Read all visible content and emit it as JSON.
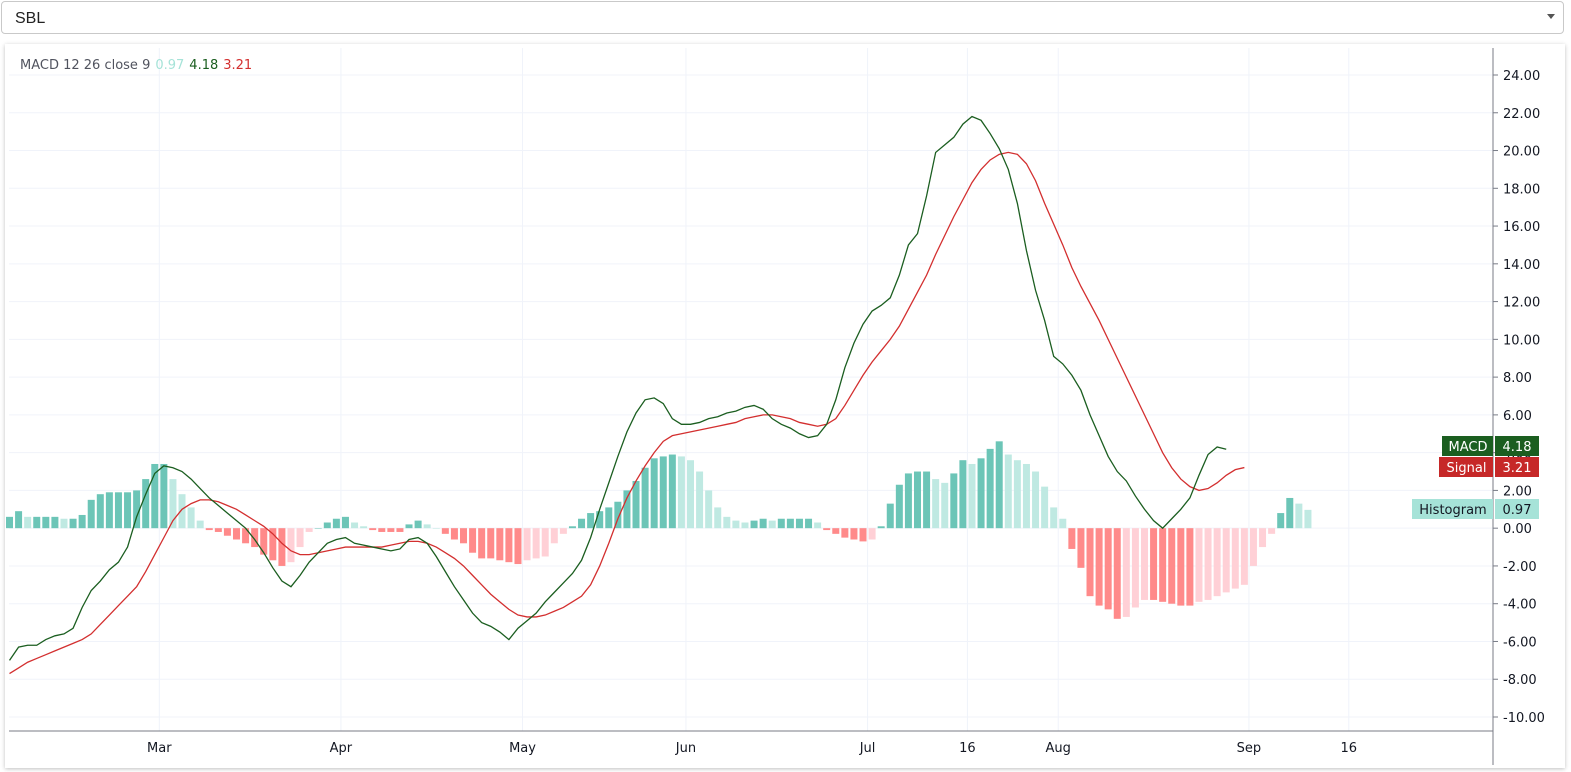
{
  "symbol_selector": {
    "value": "SBL"
  },
  "legend": {
    "indicator": "MACD 12 26 close 9",
    "histogram_value": "0.97",
    "macd_value": "4.18",
    "signal_value": "3.21"
  },
  "labels": {
    "macd": {
      "name": "MACD",
      "value": "4.18"
    },
    "signal": {
      "name": "Signal",
      "value": "3.21"
    },
    "histogram": {
      "name": "Histogram",
      "value": "0.97"
    }
  },
  "colors": {
    "macd_line": "#1b5e20",
    "signal_line": "#d32f2f",
    "hist_pos_strong": "#6cc5b7",
    "hist_pos_weak": "#bfe9e2",
    "hist_neg_strong": "#ff8a8a",
    "hist_neg_weak": "#ffd0d6"
  },
  "chart_data": {
    "type": "bar",
    "title": "",
    "y_range": [
      -10.5,
      25
    ],
    "y_ticks": [
      "24.00",
      "22.00",
      "20.00",
      "18.00",
      "16.00",
      "14.00",
      "12.00",
      "10.00",
      "8.00",
      "6.00",
      "4.00",
      "2.00",
      "0.00",
      "-2.00",
      "-4.00",
      "-6.00",
      "-8.00",
      "-10.00"
    ],
    "y_tick_values": [
      24,
      22,
      20,
      18,
      16,
      14,
      12,
      10,
      8,
      6,
      4,
      2,
      0,
      -2,
      -4,
      -6,
      -8,
      -10
    ],
    "x_ticks": [
      {
        "label": "Mar",
        "bar": 16.5
      },
      {
        "label": "Apr",
        "bar": 36.5
      },
      {
        "label": "May",
        "bar": 56.5
      },
      {
        "label": "Jun",
        "bar": 74.5
      },
      {
        "label": "Jul",
        "bar": 94.5
      },
      {
        "label": "16",
        "bar": 105.5
      },
      {
        "label": "Aug",
        "bar": 115.5
      },
      {
        "label": "Sep",
        "bar": 136.5
      },
      {
        "label": "16",
        "bar": 147.5
      }
    ],
    "series": [
      {
        "name": "Histogram",
        "values": [
          0.6,
          0.9,
          0.6,
          0.6,
          0.6,
          0.6,
          0.5,
          0.5,
          0.7,
          1.5,
          1.8,
          1.9,
          1.9,
          1.9,
          2.0,
          2.6,
          3.4,
          3.4,
          2.6,
          1.8,
          1.1,
          0.4,
          -0.1,
          -0.2,
          -0.4,
          -0.6,
          -0.8,
          -1.0,
          -1.4,
          -1.7,
          -2.0,
          -1.8,
          -1.0,
          -0.2,
          0.0,
          0.3,
          0.5,
          0.6,
          0.3,
          0.1,
          -0.1,
          -0.2,
          -0.2,
          -0.2,
          0.2,
          0.4,
          0.2,
          0.0,
          -0.3,
          -0.6,
          -0.8,
          -1.3,
          -1.6,
          -1.6,
          -1.7,
          -1.8,
          -1.9,
          -1.7,
          -1.6,
          -1.5,
          -0.8,
          -0.3,
          0.1,
          0.5,
          0.8,
          0.9,
          1.1,
          1.4,
          2.0,
          2.5,
          3.2,
          3.7,
          3.8,
          3.9,
          3.8,
          3.6,
          3.0,
          2.0,
          1.1,
          0.6,
          0.4,
          0.3,
          0.4,
          0.5,
          0.4,
          0.5,
          0.5,
          0.5,
          0.5,
          0.3,
          -0.1,
          -0.3,
          -0.5,
          -0.6,
          -0.7,
          -0.6,
          0.1,
          1.3,
          2.3,
          2.9,
          3.0,
          3.0,
          2.6,
          2.4,
          2.9,
          3.6,
          3.4,
          3.7,
          4.2,
          4.6,
          3.9,
          3.6,
          3.4,
          3.0,
          2.2,
          1.1,
          0.5,
          -1.1,
          -2.1,
          -3.6,
          -4.1,
          -4.3,
          -4.8,
          -4.7,
          -4.2,
          -3.8,
          -3.8,
          -3.9,
          -4.0,
          -4.1,
          -4.1,
          -3.9,
          -3.8,
          -3.6,
          -3.4,
          -3.2,
          -3.0,
          -2.0,
          -1.0,
          -0.3,
          0.8,
          1.6,
          1.3,
          0.97
        ]
      },
      {
        "name": "MACD",
        "values": [
          -7.0,
          -6.3,
          -6.2,
          -6.2,
          -5.9,
          -5.7,
          -5.6,
          -5.3,
          -4.2,
          -3.3,
          -2.8,
          -2.2,
          -1.8,
          -1.0,
          0.6,
          1.8,
          2.9,
          3.3,
          3.2,
          3.0,
          2.6,
          2.1,
          1.6,
          1.2,
          0.8,
          0.4,
          0.0,
          -0.6,
          -1.3,
          -2.1,
          -2.8,
          -3.1,
          -2.5,
          -1.8,
          -1.3,
          -0.8,
          -0.6,
          -0.5,
          -0.8,
          -0.9,
          -1.0,
          -1.1,
          -1.2,
          -1.1,
          -0.6,
          -0.5,
          -0.8,
          -1.5,
          -2.3,
          -3.1,
          -3.8,
          -4.5,
          -5.0,
          -5.2,
          -5.5,
          -5.9,
          -5.3,
          -4.9,
          -4.5,
          -3.9,
          -3.4,
          -2.9,
          -2.4,
          -1.7,
          -0.5,
          1.0,
          2.4,
          3.8,
          5.1,
          6.1,
          6.8,
          6.9,
          6.6,
          5.8,
          5.5,
          5.5,
          5.6,
          5.8,
          5.9,
          6.1,
          6.2,
          6.4,
          6.5,
          6.3,
          5.8,
          5.5,
          5.3,
          5.0,
          4.8,
          4.9,
          5.5,
          6.8,
          8.5,
          9.8,
          10.8,
          11.5,
          11.8,
          12.2,
          13.4,
          15.0,
          15.6,
          17.6,
          19.9,
          20.3,
          20.7,
          21.4,
          21.8,
          21.6,
          20.9,
          20.1,
          19.0,
          17.2,
          14.7,
          12.6,
          11.0,
          9.1,
          8.7,
          8.1,
          7.3,
          6.0,
          4.9,
          3.8,
          3.0,
          2.5,
          1.7,
          1.0,
          0.4,
          0.0,
          0.5,
          1.0,
          1.6,
          2.8,
          3.9,
          4.3,
          4.18
        ]
      },
      {
        "name": "Signal",
        "values": [
          -7.7,
          -7.4,
          -7.1,
          -6.9,
          -6.7,
          -6.5,
          -6.3,
          -6.1,
          -5.9,
          -5.6,
          -5.1,
          -4.6,
          -4.1,
          -3.6,
          -3.1,
          -2.3,
          -1.4,
          -0.5,
          0.4,
          1.0,
          1.3,
          1.5,
          1.5,
          1.4,
          1.2,
          1.0,
          0.7,
          0.4,
          0.1,
          -0.3,
          -0.8,
          -1.2,
          -1.4,
          -1.4,
          -1.3,
          -1.2,
          -1.1,
          -1.0,
          -1.0,
          -1.0,
          -1.0,
          -1.0,
          -0.9,
          -0.8,
          -0.7,
          -0.7,
          -0.8,
          -1.0,
          -1.3,
          -1.6,
          -2.0,
          -2.5,
          -3.0,
          -3.5,
          -3.9,
          -4.3,
          -4.6,
          -4.7,
          -4.7,
          -4.6,
          -4.4,
          -4.2,
          -3.9,
          -3.6,
          -3.0,
          -2.0,
          -0.8,
          0.5,
          1.6,
          2.5,
          3.3,
          4.0,
          4.6,
          4.9,
          5.0,
          5.1,
          5.2,
          5.3,
          5.4,
          5.5,
          5.6,
          5.8,
          5.9,
          6.0,
          6.0,
          5.9,
          5.8,
          5.6,
          5.5,
          5.4,
          5.5,
          5.8,
          6.5,
          7.3,
          8.1,
          8.8,
          9.4,
          10.0,
          10.7,
          11.6,
          12.5,
          13.4,
          14.5,
          15.5,
          16.5,
          17.4,
          18.3,
          19.0,
          19.5,
          19.8,
          19.9,
          19.8,
          19.3,
          18.4,
          17.2,
          16.1,
          15.0,
          13.8,
          12.8,
          11.9,
          11.0,
          10.0,
          9.0,
          8.0,
          7.0,
          6.0,
          5.0,
          4.0,
          3.2,
          2.6,
          2.2,
          2.0,
          2.1,
          2.4,
          2.8,
          3.1,
          3.21
        ]
      }
    ],
    "legend": "top-left",
    "grid": true,
    "y_axis": "right"
  }
}
